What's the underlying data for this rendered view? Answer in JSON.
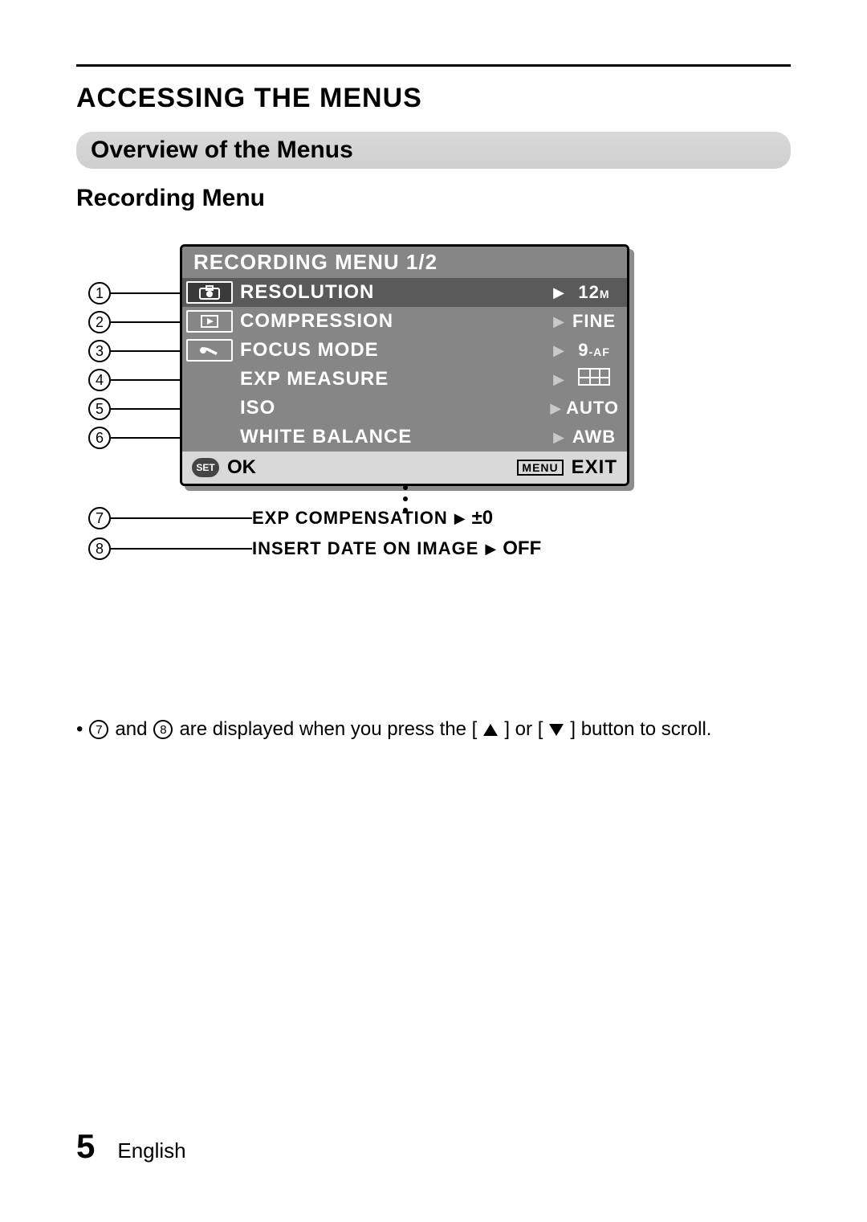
{
  "headings": {
    "h1": "ACCESSING THE MENUS",
    "pill": "Overview of the Menus",
    "h3": "Recording Menu"
  },
  "menu": {
    "title": "RECORDING MENU 1/2",
    "rows": [
      {
        "n": "1",
        "label": "RESOLUTION",
        "value_html": "12<span class='sub'>M</span>",
        "selected": true
      },
      {
        "n": "2",
        "label": "COMPRESSION",
        "value_html": "FINE"
      },
      {
        "n": "3",
        "label": "FOCUS MODE",
        "value_html": "9<span class='sub'>-AF</span>"
      },
      {
        "n": "4",
        "label": "EXP MEASURE",
        "value_html": "__MATRIX__"
      },
      {
        "n": "5",
        "label": "ISO",
        "value_html": "AUTO"
      },
      {
        "n": "6",
        "label": "WHITE BALANCE",
        "value_html": "AWB"
      }
    ],
    "footer": {
      "set": "SET",
      "ok": "OK",
      "menu": "MENU",
      "exit": "EXIT"
    }
  },
  "extra": [
    {
      "n": "7",
      "label": "EXP COMPENSATION",
      "value": "±0"
    },
    {
      "n": "8",
      "label": "INSERT DATE ON IMAGE",
      "value": "OFF"
    }
  ],
  "note": {
    "pre": "•",
    "n7": "7",
    "and": " and ",
    "n8": "8",
    "mid": " are displayed when you press the [",
    "or": "] or [",
    "post": "] button to scroll."
  },
  "footer": {
    "page": "5",
    "lang": "English"
  },
  "colors": {
    "menu_bg": "#868686",
    "menu_sel": "#5a5a5a",
    "footer_bg": "#d9d9d9"
  }
}
